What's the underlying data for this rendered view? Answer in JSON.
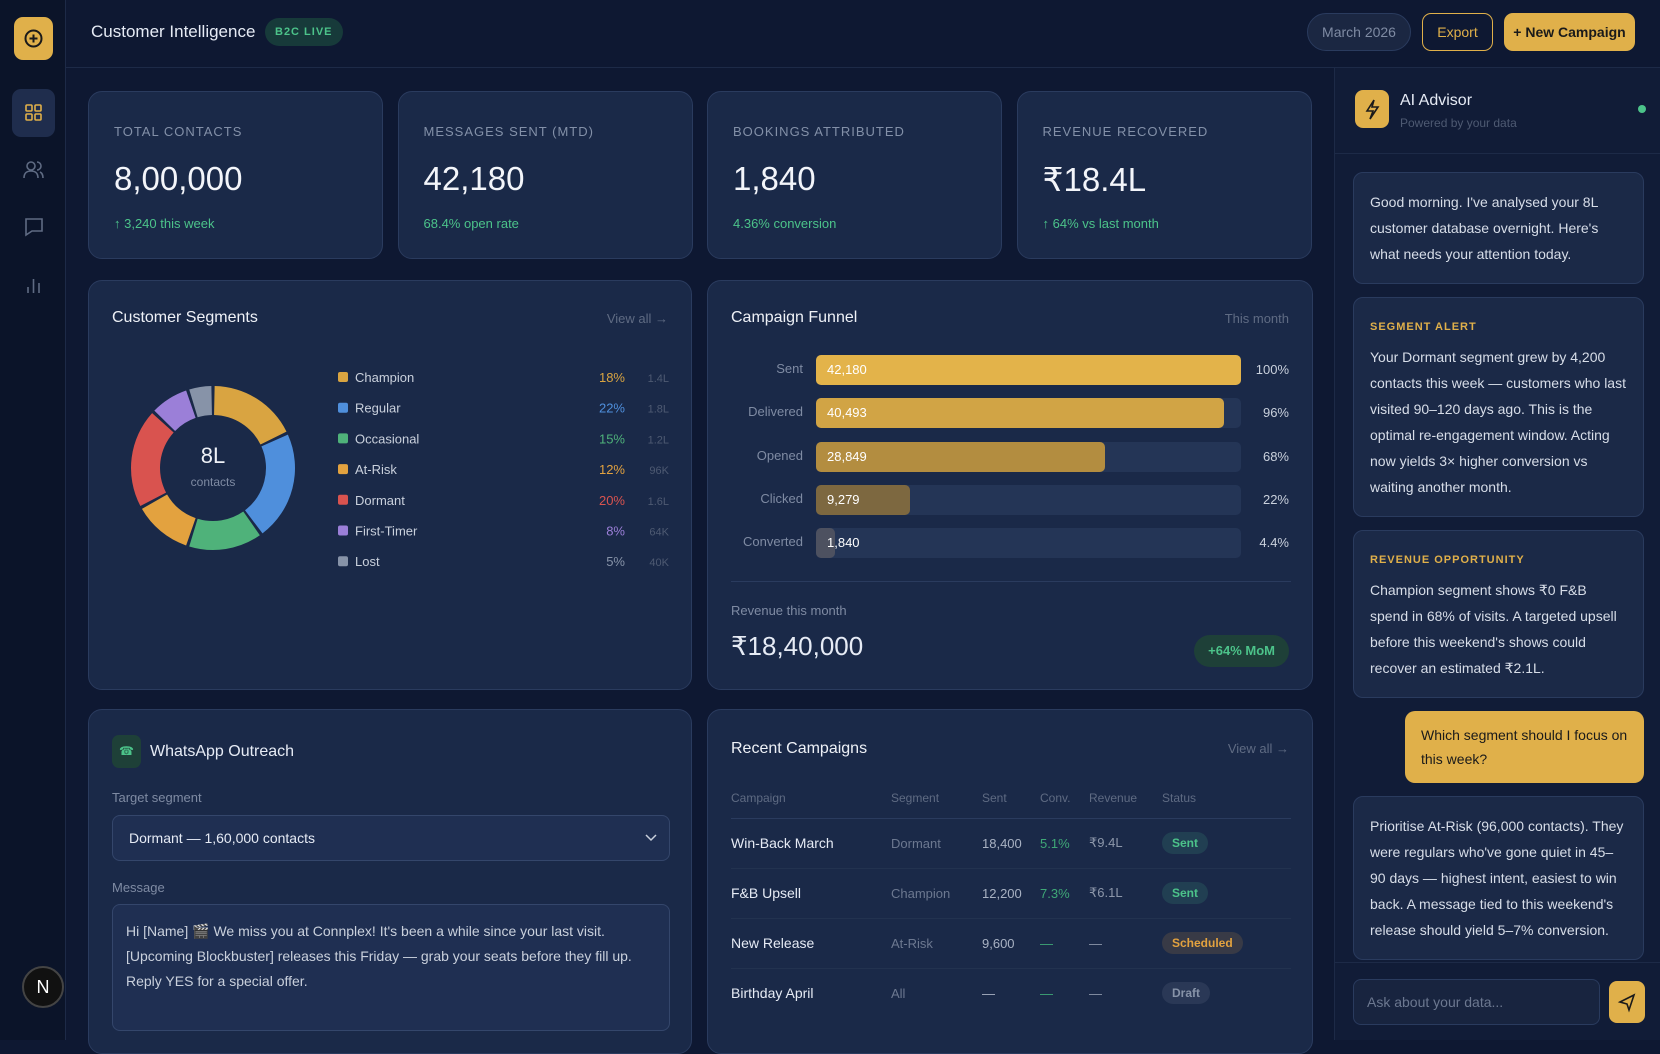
{
  "header": {
    "title": "Customer Intelligence",
    "badge": "B2C LIVE",
    "period": "March 2026",
    "export": "Export",
    "new_campaign": "+ New Campaign"
  },
  "sidebar": {
    "avatar": "N"
  },
  "kpis": [
    {
      "label": "TOTAL CONTACTS",
      "value": "8,00,000",
      "note": "↑ 3,240 this week"
    },
    {
      "label": "MESSAGES SENT (MTD)",
      "value": "42,180",
      "note": "68.4% open rate"
    },
    {
      "label": "BOOKINGS ATTRIBUTED",
      "value": "1,840",
      "note": "4.36% conversion"
    },
    {
      "label": "REVENUE RECOVERED",
      "value": "₹18.4L",
      "note": "↑ 64% vs last month"
    }
  ],
  "segments": {
    "title": "Customer Segments",
    "link": "View all →",
    "center_value": "8L",
    "center_label": "contacts",
    "items": [
      {
        "name": "Champion",
        "color": "#d9a441",
        "share": 18,
        "share_label": "18%",
        "count": "1.4L"
      },
      {
        "name": "Regular",
        "color": "#4f8fdc",
        "share": 22,
        "share_label": "22%",
        "count": "1.8L"
      },
      {
        "name": "Occasional",
        "color": "#4fb27a",
        "share": 15,
        "share_label": "15%",
        "count": "1.2L"
      },
      {
        "name": "At-Risk",
        "color": "#e3a23f",
        "share": 12,
        "share_label": "12%",
        "count": "96K"
      },
      {
        "name": "Dormant",
        "color": "#d9534f",
        "share": 20,
        "share_label": "20%",
        "count": "1.6L"
      },
      {
        "name": "First-Timer",
        "color": "#9b7fd8",
        "share": 8,
        "share_label": "8%",
        "count": "64K"
      },
      {
        "name": "Lost",
        "color": "#8793a8",
        "share": 5,
        "share_label": "5%",
        "count": "40K"
      }
    ]
  },
  "funnel": {
    "title": "Campaign Funnel",
    "period": "This month",
    "stages": [
      {
        "name": "Sent",
        "value": 42180,
        "value_label": "42,180",
        "percent": 100,
        "percent_label": "100%",
        "color": "#e3b34a"
      },
      {
        "name": "Delivered",
        "value": 40493,
        "value_label": "40,493",
        "percent": 96,
        "percent_label": "96%",
        "color": "#d1a445"
      },
      {
        "name": "Opened",
        "value": 28849,
        "value_label": "28,849",
        "percent": 68,
        "percent_label": "68%",
        "color": "#b38d40"
      },
      {
        "name": "Clicked",
        "value": 9279,
        "value_label": "9,279",
        "percent": 22,
        "percent_label": "22%",
        "color": "#7d6840"
      },
      {
        "name": "Converted",
        "value": 1840,
        "value_label": "1,840",
        "percent": 4.4,
        "percent_label": "4.4%",
        "color": "#4d5160"
      }
    ],
    "revenue_label": "Revenue this month",
    "revenue_value": "₹18,40,000",
    "badge": "+64% MoM"
  },
  "whatsapp": {
    "title": "WhatsApp Outreach",
    "target_label": "Target segment",
    "target_value": "Dormant — 1,60,000 contacts",
    "message_label": "Message",
    "message": "Hi [Name] 🎬 We miss you at Connplex! It's been a while since your last visit. [Upcoming Blockbuster] releases this Friday — grab your seats before they fill up. Reply YES for a special offer."
  },
  "campaigns": {
    "title": "Recent Campaigns",
    "link": "View all →",
    "columns": [
      "Campaign",
      "Segment",
      "Sent",
      "Conv.",
      "Revenue",
      "Status"
    ],
    "rows": [
      {
        "campaign": "Win-Back March",
        "segment": "Dormant",
        "sent": "18,400",
        "conv": "5.1%",
        "revenue": "₹9.4L",
        "status": "Sent",
        "status_color": "#4cc38a"
      },
      {
        "campaign": "F&B Upsell",
        "segment": "Champion",
        "sent": "12,200",
        "conv": "7.3%",
        "revenue": "₹6.1L",
        "status": "Sent",
        "status_color": "#4cc38a"
      },
      {
        "campaign": "New Release",
        "segment": "At-Risk",
        "sent": "9,600",
        "conv": "—",
        "revenue": "—",
        "status": "Scheduled",
        "status_color": "#e3a23f"
      },
      {
        "campaign": "Birthday April",
        "segment": "All",
        "sent": "—",
        "conv": "—",
        "revenue": "—",
        "status": "Draft",
        "status_color": "#8793a8"
      }
    ]
  },
  "advisor": {
    "title": "AI Advisor",
    "subtitle": "Powered by your data",
    "messages": [
      {
        "role": "ai",
        "text": "Good morning. I've analysed your 8L customer database overnight. Here's what needs your attention today."
      },
      {
        "role": "ai",
        "tag": "SEGMENT ALERT",
        "text": "Your Dormant segment grew by 4,200 contacts this week — customers who last visited 90–120 days ago. This is the optimal re-engagement window. Acting now yields 3× higher conversion vs waiting another month."
      },
      {
        "role": "ai",
        "tag": "REVENUE OPPORTUNITY",
        "text": "Champion segment shows ₹0 F&B spend in 68% of visits. A targeted upsell before this weekend's shows could recover an estimated ₹2.1L."
      },
      {
        "role": "user",
        "text": "Which segment should I focus on this week?"
      },
      {
        "role": "ai",
        "text": "Prioritise At-Risk (96,000 contacts). They were regulars who've gone quiet in 45–90 days — highest intent, easiest to win back. A message tied to this weekend's release should yield 5–7% conversion."
      }
    ],
    "placeholder": "Ask about your data..."
  }
}
